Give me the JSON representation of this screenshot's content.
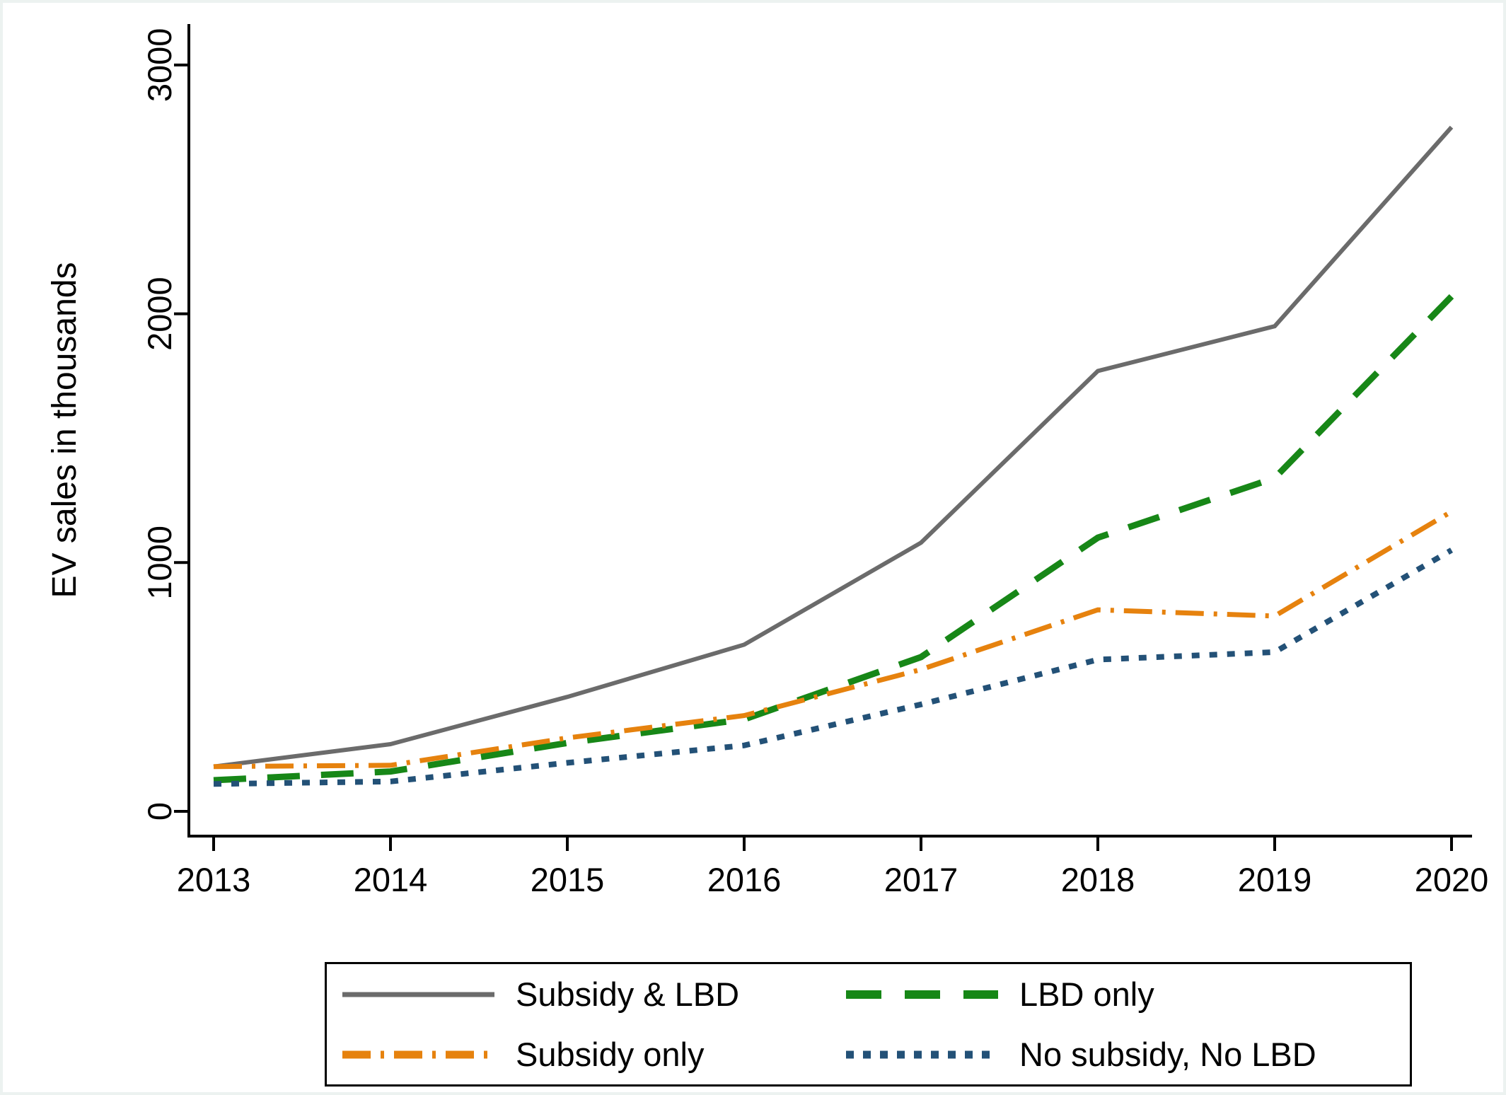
{
  "figure": {
    "background_color": "#ffffff",
    "frame_color": "#ecf2f0"
  },
  "chart_data": {
    "type": "line",
    "title": "",
    "xlabel": "",
    "ylabel": "EV sales in thousands",
    "x": [
      2013,
      2014,
      2015,
      2016,
      2017,
      2018,
      2019,
      2020
    ],
    "y_ticks": [
      0,
      1000,
      2000,
      3000
    ],
    "ylim": [
      0,
      3100
    ],
    "grid": false,
    "legend_position": "bottom-center",
    "axis_color": "#000000",
    "series": [
      {
        "name": "Subsidy & LBD",
        "color": "#6b6b6b",
        "style": "solid",
        "values": [
          180,
          270,
          460,
          670,
          1080,
          1770,
          1950,
          2750
        ]
      },
      {
        "name": "LBD only",
        "color": "#178717",
        "style": "long-dash",
        "values": [
          125,
          160,
          275,
          370,
          620,
          1100,
          1340,
          2070
        ]
      },
      {
        "name": "Subsidy only",
        "color": "#e6820e",
        "style": "dash-dot",
        "values": [
          180,
          185,
          295,
          385,
          570,
          810,
          785,
          1205
        ]
      },
      {
        "name": "No subsidy, No LBD",
        "color": "#235177",
        "style": "dotted",
        "values": [
          110,
          120,
          195,
          265,
          430,
          610,
          640,
          1050
        ]
      }
    ]
  },
  "legend": {
    "order": [
      0,
      1,
      2,
      3
    ]
  }
}
